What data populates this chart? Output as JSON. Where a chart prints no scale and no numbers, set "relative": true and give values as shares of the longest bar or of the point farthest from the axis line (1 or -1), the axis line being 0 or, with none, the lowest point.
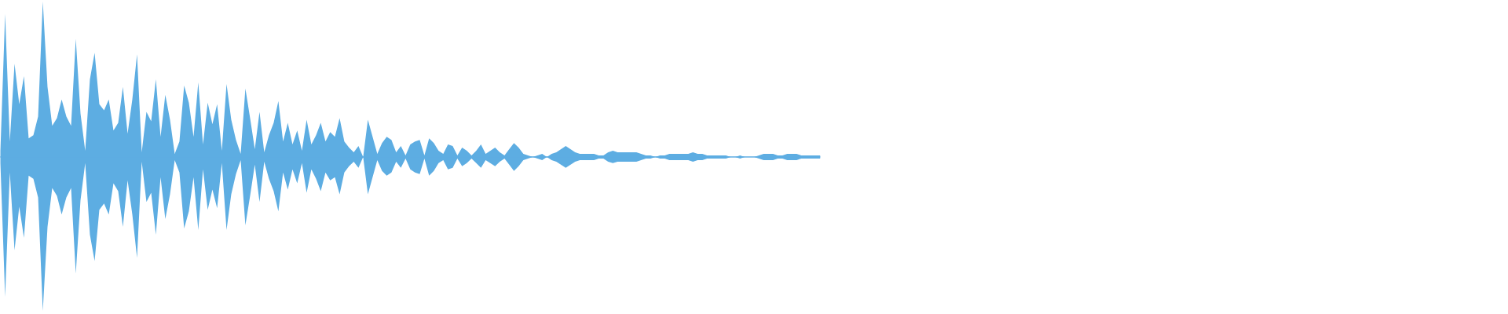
{
  "chart_data": {
    "type": "area",
    "relative": true,
    "categories": [
      null,
      null,
      null,
      null,
      null,
      null,
      null,
      null,
      null,
      null,
      null,
      null,
      null,
      null,
      null,
      null,
      null,
      null,
      null,
      null,
      null,
      null,
      null,
      null,
      null,
      null,
      null,
      null,
      null,
      null,
      null,
      null,
      null,
      null,
      null,
      null,
      null,
      null,
      null,
      null,
      null,
      null,
      null,
      null,
      null,
      null,
      null,
      null,
      null,
      null,
      null,
      null,
      null,
      null,
      null,
      null,
      null,
      null,
      null,
      null,
      null,
      null,
      null,
      null,
      null,
      null,
      null,
      null,
      null,
      null,
      null,
      null,
      null,
      null,
      null,
      null,
      null,
      null,
      null,
      null,
      null,
      null,
      null,
      null,
      null,
      null,
      null,
      null,
      null,
      null,
      null,
      null,
      null,
      null,
      null,
      null,
      null,
      null,
      null,
      null,
      null,
      null,
      null,
      null,
      null,
      null,
      null,
      null,
      null,
      null,
      null,
      null,
      null,
      null,
      null,
      null,
      null,
      null,
      null,
      null,
      null,
      null,
      null,
      null,
      null,
      null,
      null,
      null,
      null,
      null,
      null,
      null,
      null,
      null,
      null,
      null,
      null,
      null,
      null,
      null,
      null,
      null,
      null,
      null,
      null,
      null,
      null,
      null,
      null,
      null,
      null,
      null,
      null,
      null,
      null,
      null,
      null,
      null,
      null,
      null,
      null,
      null,
      null,
      null,
      null,
      null,
      null,
      null,
      null,
      null,
      null,
      null,
      null,
      null,
      null
    ],
    "series": [
      {
        "color": "#5dade2",
        "values": [
          0.04,
          0.92,
          0.1,
          0.6,
          0.34,
          0.52,
          0.12,
          0.14,
          0.26,
          1.0,
          0.45,
          0.2,
          0.25,
          0.37,
          0.26,
          0.2,
          0.76,
          0.28,
          0.04,
          0.5,
          0.67,
          0.34,
          0.3,
          0.37,
          0.17,
          0.22,
          0.45,
          0.15,
          0.37,
          0.66,
          0.03,
          0.29,
          0.23,
          0.5,
          0.13,
          0.4,
          0.24,
          0.02,
          0.1,
          0.46,
          0.35,
          0.13,
          0.48,
          0.08,
          0.35,
          0.21,
          0.34,
          0.04,
          0.47,
          0.24,
          0.11,
          0.02,
          0.44,
          0.25,
          0.05,
          0.29,
          0.03,
          0.14,
          0.22,
          0.36,
          0.1,
          0.22,
          0.08,
          0.17,
          0.04,
          0.24,
          0.08,
          0.14,
          0.22,
          0.1,
          0.16,
          0.13,
          0.25,
          0.1,
          0.06,
          0.03,
          0.07,
          0,
          0.24,
          0.13,
          0.02,
          0.09,
          0.13,
          0.11,
          0.03,
          0.07,
          0.01,
          0.08,
          0.1,
          0.11,
          0.01,
          0.12,
          0.09,
          0.04,
          0.02,
          0.08,
          0.07,
          0.01,
          0.06,
          0.04,
          0.01,
          0.04,
          0.08,
          0.02,
          0.04,
          0.06,
          0.03,
          0.01,
          0.05,
          0.09,
          0.06,
          0.02,
          0.01,
          0,
          0.01,
          0.02,
          0,
          0.02,
          0.03,
          0.05,
          0.07,
          0.05,
          0.03,
          0.02,
          0.02,
          0.02,
          0.02,
          0.01,
          0.01,
          0.03,
          0.04,
          0.03,
          0.03,
          0.03,
          0.03,
          0.03,
          0.02,
          0.01,
          0.01,
          0,
          0.01,
          0.01,
          0.02,
          0.02,
          0.02,
          0.02,
          0.02,
          0.03,
          0.02,
          0.02,
          0.01,
          0.01,
          0.01,
          0.01,
          0.01,
          0,
          0,
          0.01,
          0,
          0,
          0,
          0.01,
          0.02,
          0.02,
          0.02,
          0.01,
          0.01,
          0.02,
          0.02,
          0.02,
          0.01,
          0.01,
          0.01,
          0.01,
          0.01
        ]
      },
      {
        "color": "#5dade2",
        "values": [
          -0.04,
          -0.9,
          -0.1,
          -0.6,
          -0.32,
          -0.52,
          -0.12,
          -0.14,
          -0.26,
          -0.99,
          -0.45,
          -0.2,
          -0.25,
          -0.37,
          -0.26,
          -0.2,
          -0.75,
          -0.28,
          -0.04,
          -0.5,
          -0.67,
          -0.34,
          -0.3,
          -0.37,
          -0.17,
          -0.22,
          -0.45,
          -0.15,
          -0.37,
          -0.65,
          -0.03,
          -0.29,
          -0.23,
          -0.5,
          -0.13,
          -0.4,
          -0.24,
          -0.02,
          -0.1,
          -0.46,
          -0.35,
          -0.13,
          -0.47,
          -0.08,
          -0.34,
          -0.21,
          -0.33,
          -0.04,
          -0.47,
          -0.24,
          -0.11,
          -0.02,
          -0.44,
          -0.25,
          -0.05,
          -0.29,
          -0.03,
          -0.14,
          -0.22,
          -0.35,
          -0.1,
          -0.21,
          -0.08,
          -0.17,
          -0.04,
          -0.23,
          -0.08,
          -0.14,
          -0.22,
          -0.1,
          -0.15,
          -0.13,
          -0.24,
          -0.1,
          -0.06,
          -0.03,
          -0.07,
          0,
          -0.24,
          -0.13,
          -0.02,
          -0.09,
          -0.12,
          -0.1,
          -0.03,
          -0.07,
          -0.01,
          -0.08,
          -0.1,
          -0.11,
          -0.01,
          -0.12,
          -0.09,
          -0.04,
          -0.02,
          -0.08,
          -0.07,
          -0.01,
          -0.06,
          -0.04,
          -0.01,
          -0.04,
          -0.07,
          -0.02,
          -0.04,
          -0.06,
          -0.03,
          -0.01,
          -0.05,
          -0.09,
          -0.06,
          -0.02,
          -0.01,
          0,
          -0.01,
          -0.02,
          0,
          -0.02,
          -0.03,
          -0.05,
          -0.07,
          -0.05,
          -0.03,
          -0.02,
          -0.02,
          -0.02,
          -0.02,
          -0.01,
          -0.01,
          -0.03,
          -0.04,
          -0.03,
          -0.03,
          -0.03,
          -0.03,
          -0.03,
          -0.02,
          -0.01,
          -0.01,
          0,
          -0.01,
          -0.01,
          -0.02,
          -0.02,
          -0.02,
          -0.02,
          -0.02,
          -0.03,
          -0.02,
          -0.02,
          -0.01,
          -0.01,
          -0.01,
          -0.01,
          -0.01,
          0,
          0,
          -0.01,
          0,
          0,
          0,
          -0.01,
          -0.02,
          -0.02,
          -0.02,
          -0.01,
          -0.01,
          -0.02,
          -0.02,
          -0.02,
          -0.01,
          -0.01,
          -0.01,
          -0.01,
          -0.01
        ]
      }
    ],
    "ref_lines": [
      {
        "axis": "y",
        "value": 0,
        "color": "#5dade2"
      }
    ]
  }
}
